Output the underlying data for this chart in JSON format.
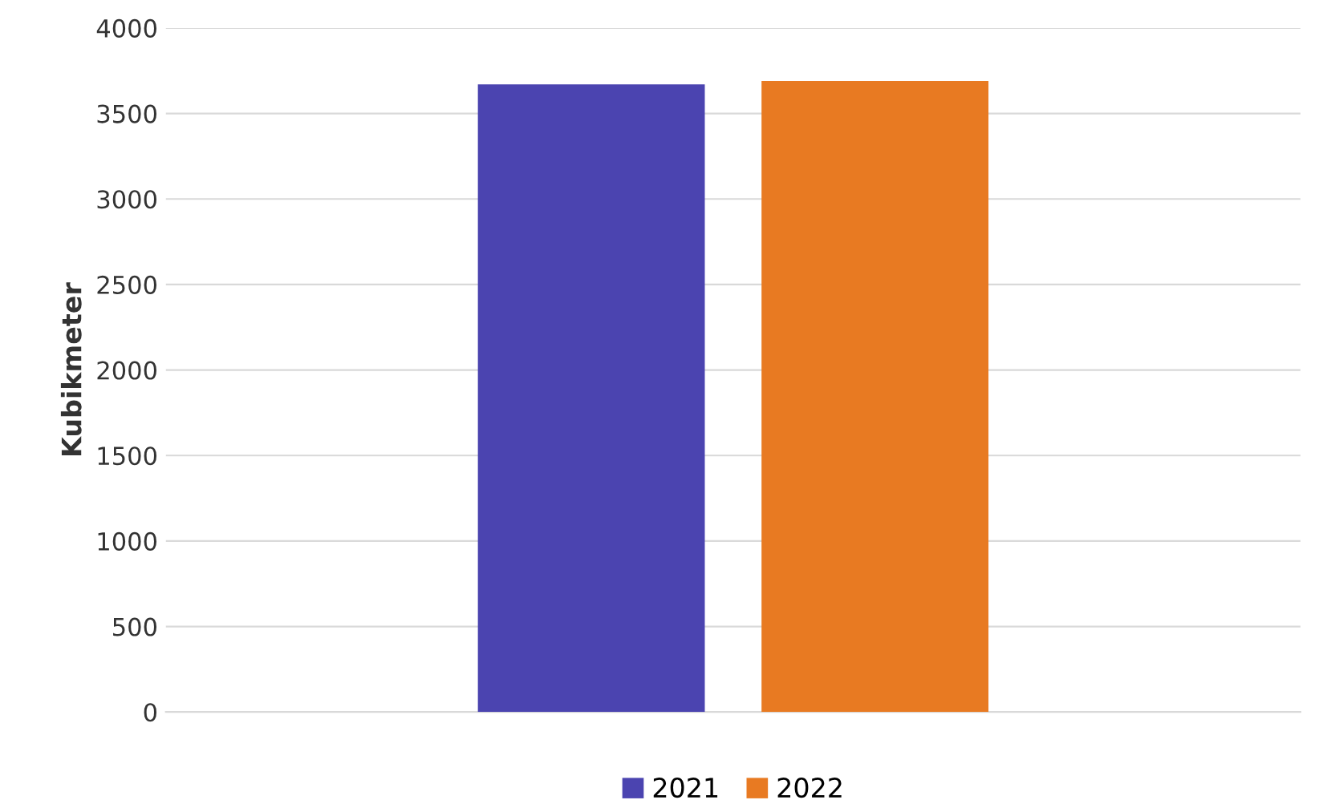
{
  "chart_data": {
    "type": "bar",
    "ylabel": "Kubikmeter",
    "categories": [
      null
    ],
    "series": [
      {
        "name": "2021",
        "color": "#4b44b0",
        "values": [
          3670
        ]
      },
      {
        "name": "2022",
        "color": "#e87a22",
        "values": [
          3690
        ]
      }
    ],
    "ylim": [
      0,
      4000
    ],
    "yticks": [
      0,
      500,
      1000,
      1500,
      2000,
      2500,
      3000,
      3500,
      4000
    ],
    "grid": "y",
    "legend": "bottom"
  }
}
